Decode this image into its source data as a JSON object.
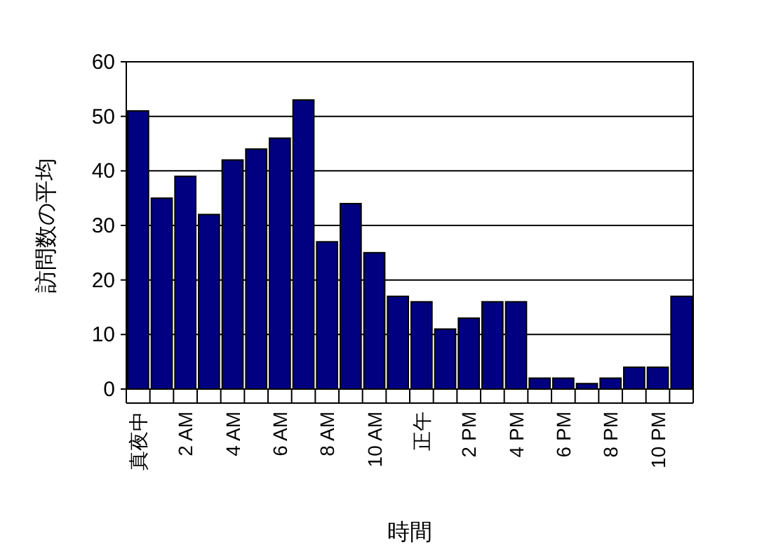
{
  "chart_data": {
    "type": "bar",
    "categories": [
      "真夜中",
      null,
      "2 AM",
      null,
      "4 AM",
      null,
      "6 AM",
      null,
      "8 AM",
      null,
      "10 AM",
      null,
      "正午",
      null,
      "2 PM",
      null,
      "4 PM",
      null,
      "6 PM",
      null,
      "8 PM",
      null,
      "10 PM",
      null
    ],
    "values": [
      51,
      35,
      39,
      32,
      42,
      44,
      46,
      53,
      27,
      34,
      25,
      17,
      16,
      11,
      13,
      16,
      16,
      2,
      2,
      1,
      2,
      4,
      4,
      17
    ],
    "color": "#000080",
    "ylim": [
      0,
      60
    ],
    "yticks": [
      0,
      10,
      20,
      30,
      40,
      50,
      60
    ],
    "grid": "y",
    "xlabel": "時間",
    "ylabel": "訪問数の平均"
  }
}
